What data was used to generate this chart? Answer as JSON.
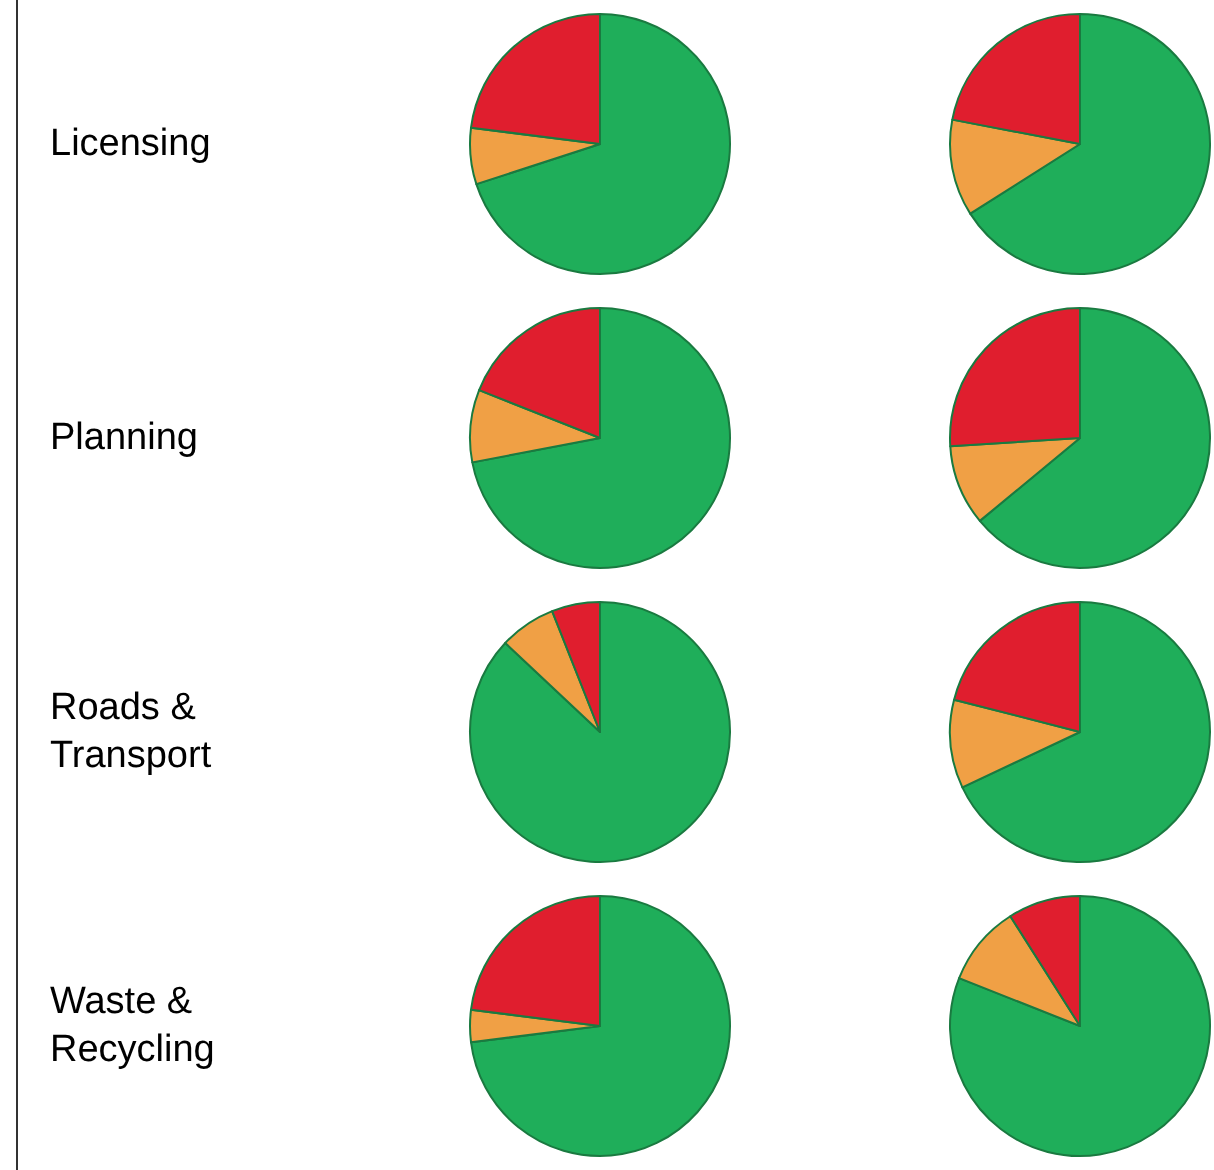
{
  "chart_data": [
    {
      "type": "pie",
      "title": "Licensing",
      "categories": [
        null,
        null,
        null
      ],
      "values": [
        70,
        7,
        23
      ],
      "colors": [
        "#1fae5a",
        "#f0a045",
        "#e01e2e"
      ]
    },
    {
      "type": "pie",
      "categories": [
        null,
        null,
        null
      ],
      "values": [
        66,
        12,
        22
      ],
      "colors": [
        "#1fae5a",
        "#f0a045",
        "#e01e2e"
      ]
    },
    {
      "type": "pie",
      "title": "Planning",
      "categories": [
        null,
        null,
        null
      ],
      "values": [
        72,
        9,
        19
      ],
      "colors": [
        "#1fae5a",
        "#f0a045",
        "#e01e2e"
      ]
    },
    {
      "type": "pie",
      "categories": [
        null,
        null,
        null
      ],
      "values": [
        64,
        10,
        26
      ],
      "colors": [
        "#1fae5a",
        "#f0a045",
        "#e01e2e"
      ]
    },
    {
      "type": "pie",
      "title": "Roads &\nTransport",
      "categories": [
        null,
        null,
        null
      ],
      "values": [
        87,
        7,
        6
      ],
      "colors": [
        "#1fae5a",
        "#f0a045",
        "#e01e2e"
      ]
    },
    {
      "type": "pie",
      "categories": [
        null,
        null,
        null
      ],
      "values": [
        68,
        11,
        21
      ],
      "colors": [
        "#1fae5a",
        "#f0a045",
        "#e01e2e"
      ]
    },
    {
      "type": "pie",
      "title": "Waste &\nRecycling",
      "categories": [
        null,
        null,
        null
      ],
      "values": [
        73,
        4,
        23
      ],
      "colors": [
        "#1fae5a",
        "#f0a045",
        "#e01e2e"
      ]
    },
    {
      "type": "pie",
      "categories": [
        null,
        null,
        null
      ],
      "values": [
        81,
        10,
        9
      ],
      "colors": [
        "#1fae5a",
        "#f0a045",
        "#e01e2e"
      ]
    }
  ]
}
